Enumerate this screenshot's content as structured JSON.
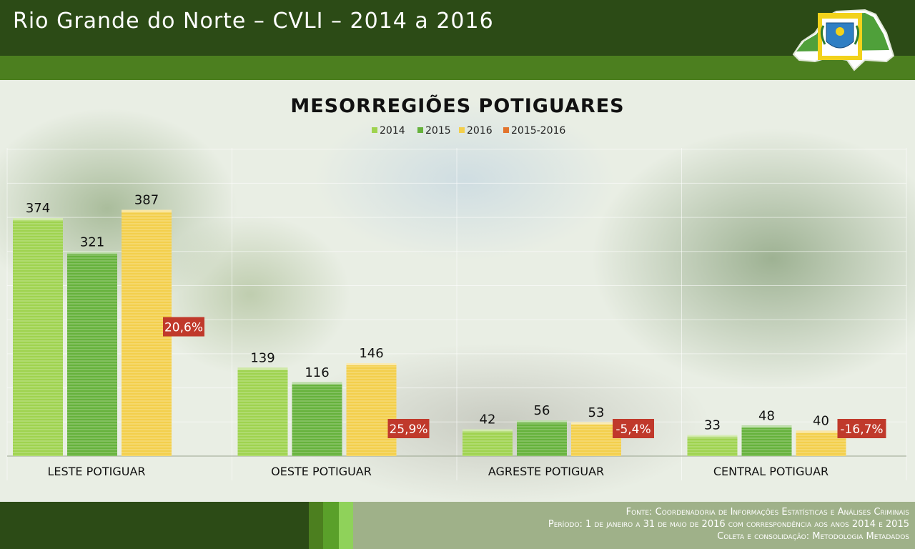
{
  "header": {
    "title": "Rio Grande do Norte – CVLI – 2014 a 2016"
  },
  "chart_data": {
    "type": "bar",
    "title": "MESORREGIÕES POTIGUARES",
    "categories": [
      "LESTE POTIGUAR",
      "OESTE POTIGUAR",
      "AGRESTE POTIGUAR",
      "CENTRAL POTIGUAR"
    ],
    "series": [
      {
        "name": "2014",
        "values": [
          374,
          139,
          42,
          33
        ],
        "color": "#9fd34f"
      },
      {
        "name": "2015",
        "values": [
          321,
          116,
          56,
          48
        ],
        "color": "#66b23c"
      },
      {
        "name": "2016",
        "values": [
          387,
          146,
          53,
          40
        ],
        "color": "#f3cf4c"
      },
      {
        "name": "2015-2016",
        "values": [
          "20,6%",
          "25,9%",
          "-5,4%",
          "-16,7%"
        ],
        "color": "#e2742d"
      }
    ],
    "variation_label_color": "#c0392b",
    "ylim": [
      0,
      450
    ],
    "grid": true,
    "legend": "top-center"
  },
  "footer": {
    "lines": [
      "Fonte: Coordenadoria de Informações Estatísticas e Análises Criminais",
      "Período: 1 de janeiro a 31 de maio de 2016 com correspondência aos anos 2014 e 2015",
      "Coleta e consolidação: Metodologia Metadados"
    ]
  }
}
